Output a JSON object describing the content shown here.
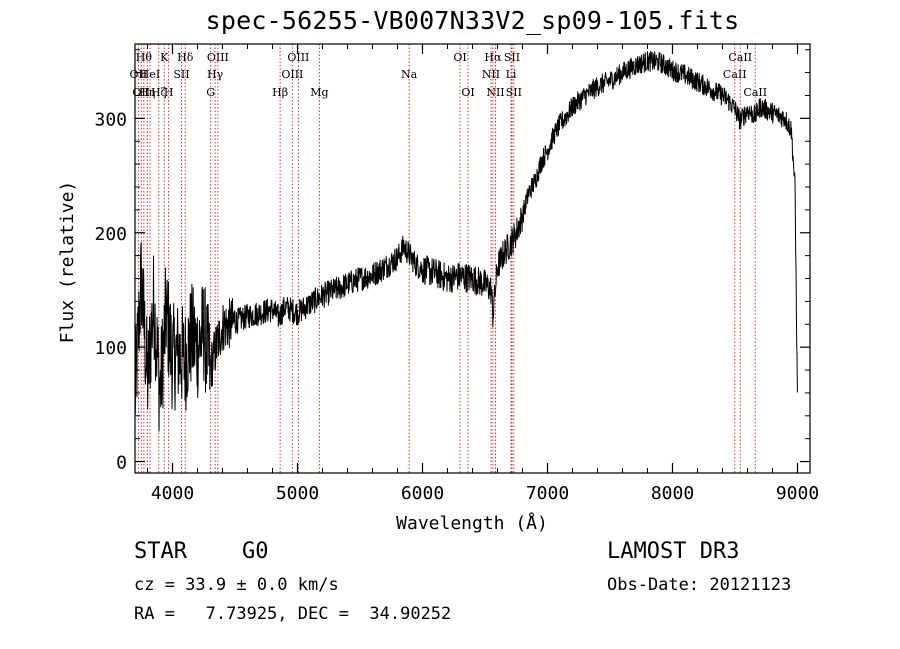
{
  "chart_data": {
    "type": "line",
    "title": "spec-56255-VB007N33V2_sp09-105.fits",
    "xlabel": "Wavelength (Å)",
    "ylabel": "Flux (relative)",
    "xlim": [
      3700,
      9100
    ],
    "ylim": [
      -10,
      365
    ],
    "xticks": [
      4000,
      5000,
      6000,
      7000,
      8000,
      9000
    ],
    "xtick_labels": [
      "4000",
      "5000",
      "6000",
      "7000",
      "8000",
      "9000"
    ],
    "yticks": [
      0,
      100,
      200,
      300
    ],
    "ytick_labels": [
      "0",
      "100",
      "200",
      "300"
    ],
    "series": [
      {
        "name": "flux",
        "x": [
          3700,
          3750,
          3800,
          3850,
          3900,
          3950,
          4000,
          4050,
          4100,
          4150,
          4200,
          4250,
          4300,
          4350,
          4400,
          4450,
          4500,
          4600,
          4700,
          4800,
          4850,
          4900,
          5000,
          5100,
          5200,
          5300,
          5400,
          5500,
          5600,
          5700,
          5800,
          5850,
          5900,
          5950,
          6000,
          6100,
          6200,
          6300,
          6400,
          6500,
          6550,
          6563,
          6600,
          6650,
          6700,
          6750,
          6800,
          6850,
          6900,
          6950,
          7000,
          7050,
          7100,
          7150,
          7200,
          7300,
          7400,
          7500,
          7600,
          7700,
          7800,
          7900,
          8000,
          8100,
          8200,
          8300,
          8400,
          8450,
          8500,
          8542,
          8600,
          8662,
          8700,
          8800,
          8900,
          8950,
          8980,
          9000
        ],
        "values": [
          55,
          160,
          70,
          140,
          60,
          130,
          90,
          95,
          88,
          110,
          100,
          115,
          80,
          100,
          118,
          120,
          122,
          127,
          130,
          133,
          126,
          135,
          130,
          138,
          145,
          150,
          155,
          160,
          163,
          170,
          178,
          188,
          180,
          172,
          168,
          165,
          160,
          162,
          160,
          155,
          150,
          128,
          170,
          182,
          190,
          200,
          215,
          235,
          245,
          262,
          272,
          285,
          295,
          302,
          310,
          320,
          328,
          333,
          340,
          346,
          350,
          349,
          342,
          338,
          332,
          326,
          320,
          315,
          308,
          298,
          307,
          302,
          310,
          305,
          300,
          290,
          240,
          50
        ]
      }
    ],
    "lines": [
      {
        "wave": 3727,
        "label": "OII",
        "row": 2
      },
      {
        "wave": 3750,
        "label": "OII",
        "row": 3
      },
      {
        "wave": 3771,
        "label": "Hθ",
        "row": 1
      },
      {
        "wave": 3798,
        "label": "Hη",
        "row": 3
      },
      {
        "wave": 3820,
        "label": "HeI",
        "row": 2
      },
      {
        "wave": 3890,
        "label": "Hζ",
        "row": 3
      },
      {
        "wave": 3934,
        "label": "K",
        "row": 1
      },
      {
        "wave": 3969,
        "label": "H",
        "row": 3
      },
      {
        "wave": 4072,
        "label": "SII",
        "row": 2
      },
      {
        "wave": 4102,
        "label": "Hδ",
        "row": 1
      },
      {
        "wave": 4305,
        "label": "G",
        "row": 3
      },
      {
        "wave": 4341,
        "label": "Hγ",
        "row": 2
      },
      {
        "wave": 4363,
        "label": "OIII",
        "row": 1
      },
      {
        "wave": 4861,
        "label": "Hβ",
        "row": 3
      },
      {
        "wave": 4959,
        "label": "OIII",
        "row": 2
      },
      {
        "wave": 5007,
        "label": "OIII",
        "row": 1
      },
      {
        "wave": 5175,
        "label": "Mg",
        "row": 3
      },
      {
        "wave": 5893,
        "label": "Na",
        "row": 2
      },
      {
        "wave": 6300,
        "label": "OI",
        "row": 1
      },
      {
        "wave": 6364,
        "label": "OI",
        "row": 3
      },
      {
        "wave": 6548,
        "label": "NII",
        "row": 2
      },
      {
        "wave": 6563,
        "label": "Hα",
        "row": 1
      },
      {
        "wave": 6584,
        "label": "NII",
        "row": 3
      },
      {
        "wave": 6708,
        "label": "Li",
        "row": 2
      },
      {
        "wave": 6716,
        "label": "SII",
        "row": 1
      },
      {
        "wave": 6731,
        "label": "SII",
        "row": 3
      },
      {
        "wave": 8498,
        "label": "CaII",
        "row": 2
      },
      {
        "wave": 8542,
        "label": "CaII",
        "row": 1
      },
      {
        "wave": 8662,
        "label": "CaII",
        "row": 3
      }
    ]
  },
  "info": {
    "object_class": "STAR",
    "subclass": "G0",
    "survey": "LAMOST DR3",
    "cz_line": "cz = 33.9 ± 0.0 km/s",
    "obs_date": "Obs-Date: 20121123",
    "radec_line": "RA =   7.73925, DEC =  34.90252"
  },
  "colors": {
    "spectrum": "#000000",
    "line_markers": "#cc2222",
    "axes": "#000000"
  }
}
